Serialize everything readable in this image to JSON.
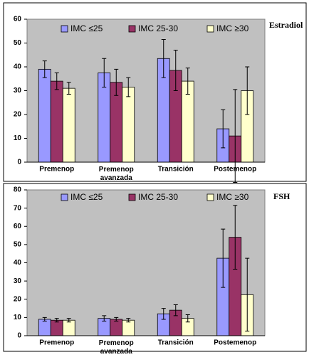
{
  "chart_data": [
    {
      "type": "bar",
      "title": "Estradiol",
      "categories": [
        "Premenop",
        "Premenop\navanzada",
        "Transición",
        "Postemenop"
      ],
      "series": [
        {
          "name": "IMC ≤25",
          "color": "#9999ff",
          "values": [
            39,
            37.5,
            43.5,
            14
          ],
          "errors": [
            3.5,
            6,
            8,
            8
          ]
        },
        {
          "name": "IMC 25-30",
          "color": "#993366",
          "values": [
            34,
            33.5,
            38.5,
            11
          ],
          "errors": [
            3.5,
            5.5,
            8.5,
            19.5
          ]
        },
        {
          "name": "IMC ≥30",
          "color": "#ffffcc",
          "values": [
            31,
            31.5,
            34,
            30
          ],
          "errors": [
            2.5,
            4,
            5.5,
            10
          ]
        }
      ],
      "ylim": [
        0,
        60
      ],
      "yticks": [
        0,
        10,
        20,
        30,
        40,
        50,
        60
      ],
      "grid": false
    },
    {
      "type": "bar",
      "title": "FSH",
      "categories": [
        "Premenop",
        "Premenop\navanzada",
        "Transición",
        "Postemenop"
      ],
      "series": [
        {
          "name": "IMC ≤25",
          "color": "#9999ff",
          "values": [
            9,
            9.5,
            12,
            42.5
          ],
          "errors": [
            1,
            1.5,
            3,
            16
          ]
        },
        {
          "name": "IMC 25-30",
          "color": "#993366",
          "values": [
            8.5,
            9,
            14,
            54
          ],
          "errors": [
            1,
            1,
            3,
            17.5
          ]
        },
        {
          "name": "IMC ≥30",
          "color": "#ffffcc",
          "values": [
            8.5,
            8.5,
            9.5,
            22.5
          ],
          "errors": [
            1,
            1,
            2,
            20
          ]
        }
      ],
      "ylim": [
        0,
        80
      ],
      "yticks": [
        0,
        10,
        20,
        30,
        40,
        50,
        60,
        70,
        80
      ],
      "grid": false
    }
  ]
}
